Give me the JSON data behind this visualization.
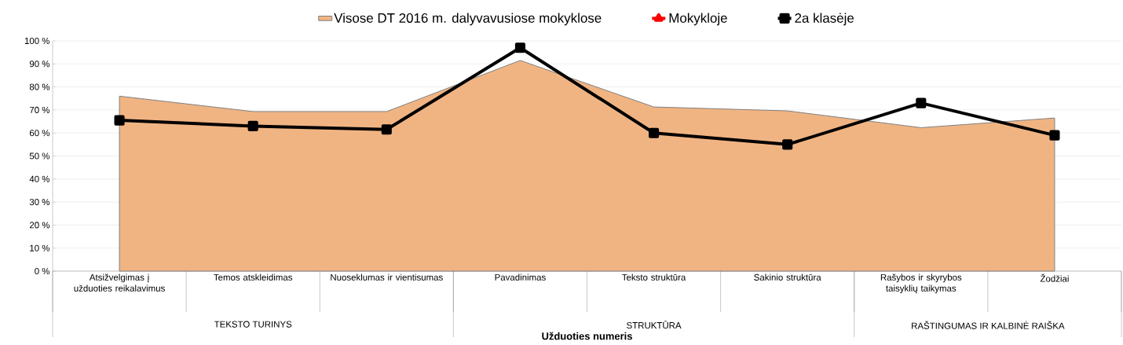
{
  "chart_data": {
    "type": "line",
    "xlabel": "Užduoties numeris",
    "categories": [
      "Atsižvelgimas į užduoties reikalavimus",
      "Temos atskleidimas",
      "Nuoseklumas ir vientisumas",
      "Pavadinimas",
      "Teksto struktūra",
      "Sakinio struktūra",
      "Rašybos ir skyrybos taisyklių taikymas",
      "Žodžiai"
    ],
    "series": [
      {
        "name": "Visose DT 2016 m. dalyvavusiose mokyklose",
        "type": "area",
        "color": "#f0b483",
        "values": [
          76,
          69.3,
          69.3,
          91.5,
          71.3,
          69.6,
          62.3,
          66.5
        ]
      },
      {
        "name": "Mokykloje",
        "color": "#ff0000",
        "marker": "triangle",
        "values": [
          null,
          null,
          null,
          null,
          null,
          null,
          null,
          null
        ]
      },
      {
        "name": "2a klasėje",
        "color": "#000000",
        "marker": "square",
        "values": [
          65.5,
          63,
          61.5,
          97,
          60,
          55,
          73,
          59
        ]
      }
    ],
    "annotations": [
      "TEKSTO TURINYS",
      "STRUKTŪRA",
      "RAŠTINGUMAS IR KALBINĖ RAIŠKA"
    ],
    "ylim": [
      0,
      100
    ],
    "yticks": [
      {
        "value": 0,
        "label": "0 %"
      },
      {
        "value": 10,
        "label": "10 %"
      },
      {
        "value": 20,
        "label": "20 %"
      },
      {
        "value": 30,
        "label": "30 %"
      },
      {
        "value": 40,
        "label": "40 %"
      },
      {
        "value": 50,
        "label": "50 %"
      },
      {
        "value": 60,
        "label": "60 %"
      },
      {
        "value": 70,
        "label": "70 %"
      },
      {
        "value": 80,
        "label": "80 %"
      },
      {
        "value": 90,
        "label": "90 %"
      },
      {
        "value": 100,
        "label": "100 %"
      }
    ],
    "grid": true,
    "legend": "top"
  }
}
